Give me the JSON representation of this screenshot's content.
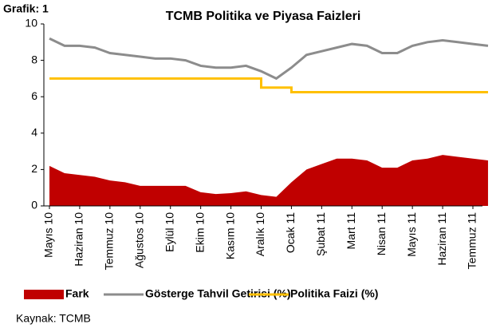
{
  "label": "Grafik: 1",
  "source": "Kaynak: TCMB",
  "chart_data": {
    "type": "line",
    "title": "TCMB Politika ve Piyasa Faizleri",
    "categories": [
      "Mayıs 10",
      null,
      "Haziran 10",
      null,
      "Temmuz 10",
      null,
      "Ağustos 10",
      null,
      "Eylül 10",
      null,
      "Ekim 10",
      null,
      "Kasım 10",
      null,
      "Aralık 10",
      null,
      "Ocak 11",
      null,
      "Şubat 11",
      null,
      "Mart 11",
      null,
      "Nisan 11",
      null,
      "Mayıs 11",
      null,
      "Haziran 11",
      null,
      "Temmuz 11",
      null
    ],
    "series": [
      {
        "name": "Fark",
        "color": "#c00000",
        "kind": "area",
        "values": [
          2.2,
          1.8,
          1.7,
          1.6,
          1.4,
          1.3,
          1.1,
          1.1,
          1.1,
          1.1,
          0.75,
          0.65,
          0.7,
          0.8,
          0.6,
          0.5,
          1.3,
          2.0,
          2.3,
          2.6,
          2.6,
          2.5,
          2.1,
          2.1,
          2.5,
          2.6,
          2.8,
          2.7,
          2.6,
          2.5
        ]
      },
      {
        "name": "Gösterge Tahvil Getirisi (%)",
        "color": "#8c8c8c",
        "kind": "line",
        "values": [
          9.2,
          8.8,
          8.8,
          8.7,
          8.4,
          8.3,
          8.2,
          8.1,
          8.1,
          8.0,
          7.7,
          7.6,
          7.6,
          7.7,
          7.4,
          7.0,
          7.6,
          8.3,
          8.5,
          8.7,
          8.9,
          8.8,
          8.4,
          8.4,
          8.8,
          9.0,
          9.1,
          9.0,
          8.9,
          8.8
        ]
      },
      {
        "name": "Politika Faizi (%)",
        "color": "#ffc000",
        "kind": "step",
        "values": [
          7.0,
          7.0,
          7.0,
          7.0,
          7.0,
          7.0,
          7.0,
          7.0,
          7.0,
          7.0,
          7.0,
          7.0,
          7.0,
          7.0,
          6.5,
          6.5,
          6.25,
          6.25,
          6.25,
          6.25,
          6.25,
          6.25,
          6.25,
          6.25,
          6.25,
          6.25,
          6.25,
          6.25,
          6.25,
          6.25
        ]
      }
    ],
    "ylim": [
      0,
      10
    ],
    "yticks": [
      0,
      2,
      4,
      6,
      8,
      10
    ]
  }
}
